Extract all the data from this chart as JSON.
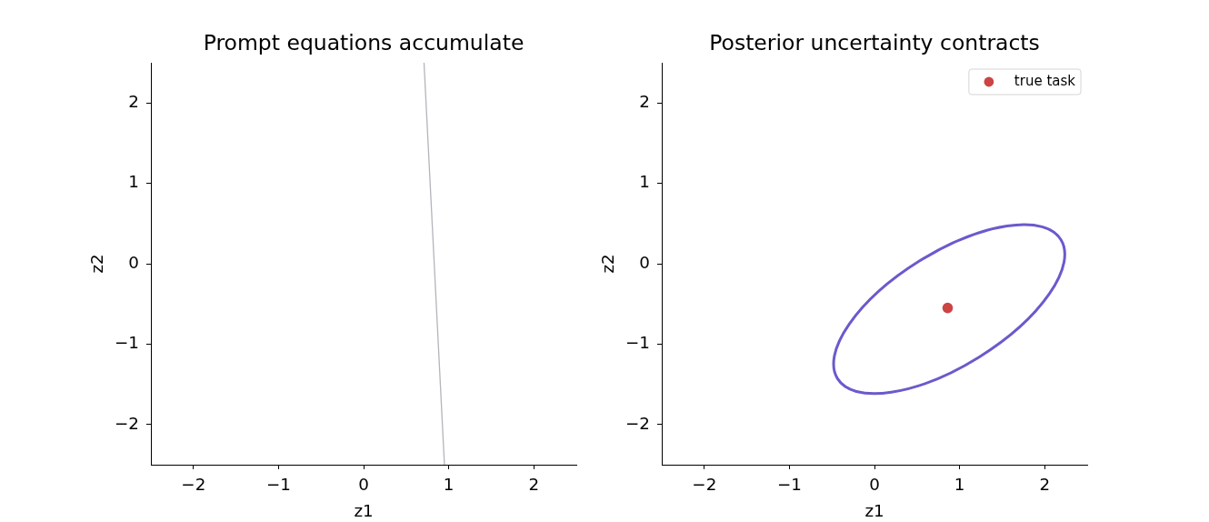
{
  "chart_data": [
    {
      "type": "line",
      "title": "Prompt equations accumulate",
      "xlabel": "z1",
      "ylabel": "z2",
      "xlim": [
        -2.5,
        2.5
      ],
      "ylim": [
        -2.5,
        2.5
      ],
      "xticks": [
        -2,
        -1,
        0,
        1,
        2
      ],
      "yticks": [
        -2,
        -1,
        0,
        1,
        2
      ],
      "series": [
        {
          "color": "#b4b4bc",
          "x": [
            0.71,
            0.95
          ],
          "values": [
            2.5,
            -2.5
          ]
        }
      ]
    },
    {
      "type": "scatter",
      "title": "Posterior uncertainty contracts",
      "xlabel": "z1",
      "ylabel": "z2",
      "xlim": [
        -2.5,
        2.5
      ],
      "ylim": [
        -2.5,
        2.5
      ],
      "xticks": [
        -2,
        -1,
        0,
        1,
        2
      ],
      "yticks": [
        -2,
        -1,
        0,
        1,
        2
      ],
      "legend": "top right",
      "series": [
        {
          "name": "true task",
          "color": "#cc4444",
          "marker": "circle",
          "x": [
            0.86
          ],
          "values": [
            -0.55
          ]
        }
      ]
    }
  ]
}
